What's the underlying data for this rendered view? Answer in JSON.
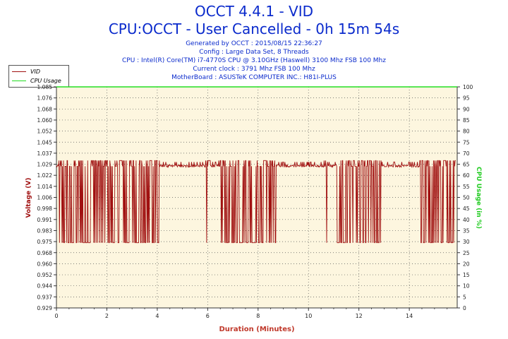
{
  "header": {
    "title": "OCCT 4.4.1 - VID",
    "subtitle": "CPU:OCCT - User Cancelled - 0h 15m 54s",
    "info_lines": [
      "Generated by OCCT : 2015/08/15 22:36:27",
      "Config : Large Data Set, 8 Threads",
      "CPU : Intel(R) Core(TM) i7-4770S CPU @ 3.10GHz (Haswell) 3100 Mhz FSB 100 Mhz",
      "Current clock : 3791 Mhz FSB 100 Mhz",
      "MotherBoard : ASUSTeK COMPUTER INC.: H81I-PLUS"
    ]
  },
  "legend": {
    "items": [
      {
        "label": "VID",
        "color": "#a01010"
      },
      {
        "label": "CPU Usage",
        "color": "#22dd22"
      }
    ]
  },
  "chart_data": {
    "type": "line",
    "xlabel": "Duration (Minutes)",
    "ylabel": "Voltage (V)",
    "y2label": "CPU Usage (in %)",
    "xlim": [
      0,
      15.9
    ],
    "ylim": [
      0.929,
      1.085
    ],
    "y2lim": [
      0,
      100
    ],
    "x_ticks": [
      "0",
      "2",
      "4",
      "6",
      "8",
      "10",
      "12",
      "14"
    ],
    "y_ticks": [
      "0.929",
      "0.937",
      "0.944",
      "0.952",
      "0.960",
      "0.968",
      "0.975",
      "0.983",
      "0.991",
      "0.998",
      "1.006",
      "1.014",
      "1.022",
      "1.029",
      "1.037",
      "1.045",
      "1.052",
      "1.060",
      "1.068",
      "1.076",
      "1.085"
    ],
    "y2_ticks": [
      "0",
      "5",
      "10",
      "15",
      "20",
      "25",
      "30",
      "35",
      "40",
      "45",
      "50",
      "55",
      "60",
      "65",
      "70",
      "75",
      "80",
      "85",
      "90",
      "95",
      "100"
    ],
    "grid": true,
    "series": [
      {
        "name": "VID",
        "color": "#a01010",
        "axis": "left",
        "baseline": 1.029,
        "high": 1.033,
        "low": 0.975,
        "drop_intervals": [
          [
            0.1,
            4.1
          ],
          [
            5.9,
            6.1
          ],
          [
            6.4,
            8.7
          ],
          [
            10.6,
            10.75
          ],
          [
            11.1,
            12.9
          ],
          [
            14.4,
            15.85
          ]
        ]
      },
      {
        "name": "CPU Usage",
        "color": "#22dd22",
        "axis": "right",
        "x": [
          0,
          15.9
        ],
        "values": [
          100,
          100
        ]
      }
    ]
  }
}
